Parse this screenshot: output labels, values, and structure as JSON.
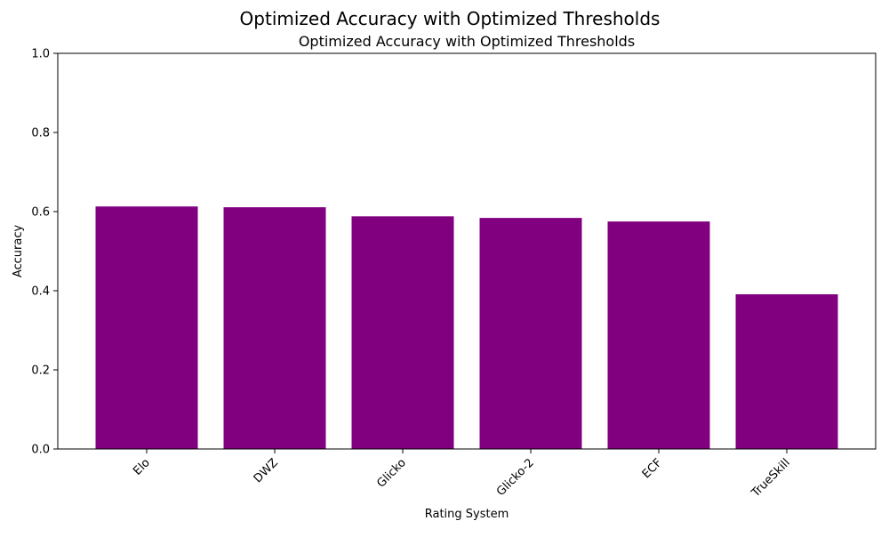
{
  "figure": {
    "suptitle": "Optimized Accuracy with Optimized Thresholds"
  },
  "chart_data": {
    "type": "bar",
    "title": "Optimized Accuracy with Optimized Thresholds",
    "xlabel": "Rating System",
    "ylabel": "Accuracy",
    "categories": [
      "Elo",
      "DWZ",
      "Glicko",
      "Glicko-2",
      "ECF",
      "TrueSkill"
    ],
    "values": [
      0.613,
      0.611,
      0.588,
      0.584,
      0.575,
      0.391
    ],
    "ylim": [
      0,
      1.0
    ],
    "yticks": [
      "0.0",
      "0.2",
      "0.4",
      "0.6",
      "0.8",
      "1.0"
    ],
    "bar_color": "#800080",
    "grid": false,
    "legend": "none"
  }
}
